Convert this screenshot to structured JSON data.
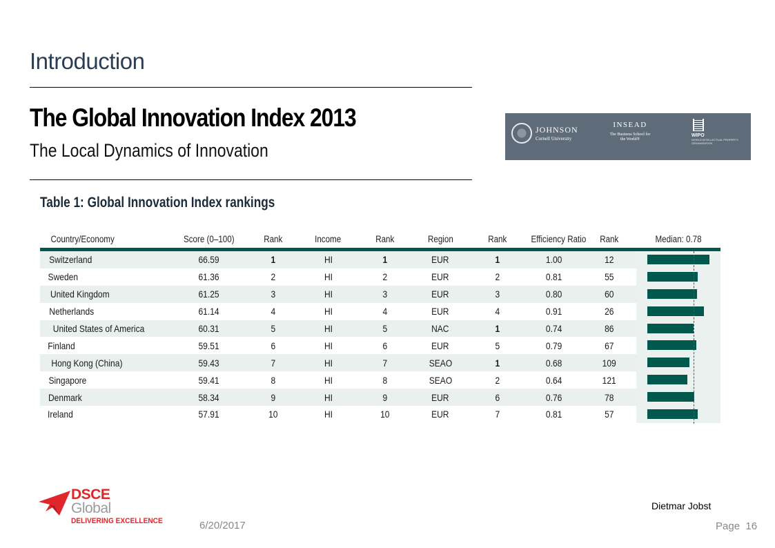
{
  "slide": {
    "title": "Introduction",
    "doc_title": "The Global Innovation Index 2013",
    "doc_subtitle": "The Local Dynamics of Innovation"
  },
  "partners": {
    "johnson_name": "JOHNSON",
    "johnson_sub": "Cornell University",
    "insead_name": "INSEAD",
    "insead_sub": "The Business School for the World®",
    "wipo_name": "WIPO",
    "wipo_sub": "WORLD INTELLECTUAL PROPERTY ORGANIZATION"
  },
  "table": {
    "caption": "Table 1: Global Innovation Index rankings",
    "headers": [
      "Country/Economy",
      "Score (0–100)",
      "Rank",
      "Income",
      "Rank",
      "Region",
      "Rank",
      "Efficiency Ratio",
      "Rank",
      "Median: 0.78"
    ],
    "median": 0.78,
    "rows": [
      {
        "country": "Switzerland",
        "score": "66.59",
        "rank": "1",
        "income": "HI",
        "income_rank": "1",
        "region": "EUR",
        "region_rank": "1",
        "efficiency": "1.00",
        "eff_rank": "12",
        "ratio": 1.0
      },
      {
        "country": "Sweden",
        "score": "61.36",
        "rank": "2",
        "income": "HI",
        "income_rank": "2",
        "region": "EUR",
        "region_rank": "2",
        "efficiency": "0.81",
        "eff_rank": "55",
        "ratio": 0.81
      },
      {
        "country": "United Kingdom",
        "score": "61.25",
        "rank": "3",
        "income": "HI",
        "income_rank": "3",
        "region": "EUR",
        "region_rank": "3",
        "efficiency": "0.80",
        "eff_rank": "60",
        "ratio": 0.8
      },
      {
        "country": "Netherlands",
        "score": "61.14",
        "rank": "4",
        "income": "HI",
        "income_rank": "4",
        "region": "EUR",
        "region_rank": "4",
        "efficiency": "0.91",
        "eff_rank": "26",
        "ratio": 0.91
      },
      {
        "country": "United States of America",
        "score": "60.31",
        "rank": "5",
        "income": "HI",
        "income_rank": "5",
        "region": "NAC",
        "region_rank": "1",
        "efficiency": "0.74",
        "eff_rank": "86",
        "ratio": 0.74
      },
      {
        "country": "Finland",
        "score": "59.51",
        "rank": "6",
        "income": "HI",
        "income_rank": "6",
        "region": "EUR",
        "region_rank": "5",
        "efficiency": "0.79",
        "eff_rank": "67",
        "ratio": 0.79
      },
      {
        "country": "Hong Kong (China)",
        "score": "59.43",
        "rank": "7",
        "income": "HI",
        "income_rank": "7",
        "region": "SEAO",
        "region_rank": "1",
        "efficiency": "0.68",
        "eff_rank": "109",
        "ratio": 0.68
      },
      {
        "country": "Singapore",
        "score": "59.41",
        "rank": "8",
        "income": "HI",
        "income_rank": "8",
        "region": "SEAO",
        "region_rank": "2",
        "efficiency": "0.64",
        "eff_rank": "121",
        "ratio": 0.64
      },
      {
        "country": "Denmark",
        "score": "58.34",
        "rank": "9",
        "income": "HI",
        "income_rank": "9",
        "region": "EUR",
        "region_rank": "6",
        "efficiency": "0.76",
        "eff_rank": "78",
        "ratio": 0.76
      },
      {
        "country": "Ireland",
        "score": "57.91",
        "rank": "10",
        "income": "HI",
        "income_rank": "10",
        "region": "EUR",
        "region_rank": "7",
        "efficiency": "0.81",
        "eff_rank": "57",
        "ratio": 0.81
      }
    ]
  },
  "footer": {
    "logo_line1": "DSCE",
    "logo_line2": "Global",
    "logo_tagline": "DELIVERING EXCELLENCE",
    "date": "6/20/2017",
    "author": "Dietmar Jobst",
    "page_label": "Page  16"
  },
  "colors": {
    "title": "#2b3d55",
    "table_accent": "#00594c",
    "row_stripe": "#e9f0ee",
    "banner": "#5d6c78",
    "logo_red": "#e0262a"
  }
}
